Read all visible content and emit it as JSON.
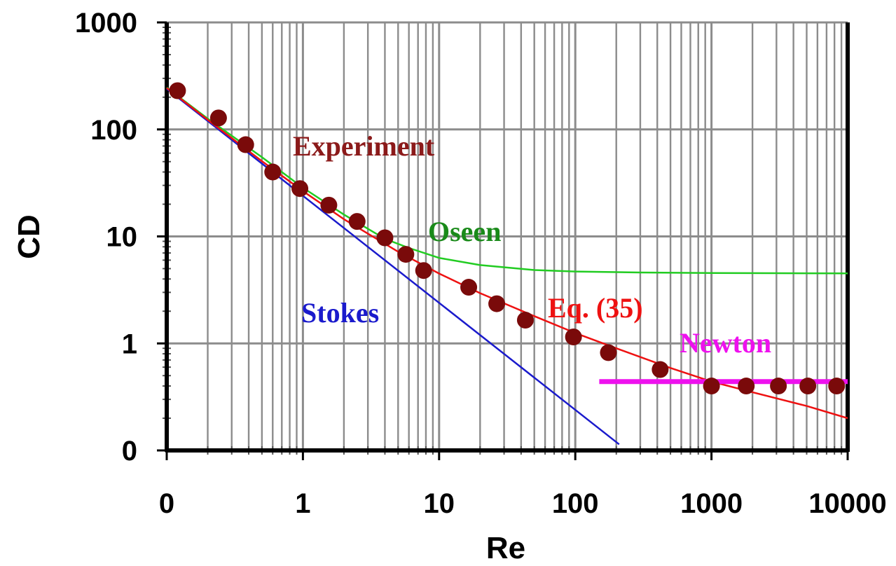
{
  "chart_data": {
    "type": "scatter",
    "title": "",
    "xlabel": "Re",
    "ylabel": "CD",
    "x_scale": "log",
    "y_scale": "log",
    "xlim": [
      0.1,
      10000
    ],
    "ylim": [
      0.1,
      1000
    ],
    "grid": true,
    "x_tick_labels": [
      "0",
      "1",
      "10",
      "100",
      "1000",
      "10000"
    ],
    "y_tick_labels": [
      "0",
      "1",
      "10",
      "100",
      "1000"
    ],
    "x_tick_values": [
      0.1,
      1,
      10,
      100,
      1000,
      10000
    ],
    "y_tick_values": [
      0.1,
      1,
      10,
      100,
      1000
    ],
    "series": [
      {
        "name": "Experiment",
        "kind": "markers",
        "color": "#7a0a0a",
        "label_color": "#8b1a1a",
        "x": [
          0.12,
          0.24,
          0.38,
          0.6,
          0.95,
          1.55,
          2.5,
          4.0,
          5.7,
          7.7,
          16.5,
          26.5,
          43,
          97,
          175,
          420,
          1000,
          1800,
          3100,
          5100,
          8300
        ],
        "y": [
          230,
          128,
          72,
          40,
          28,
          19.6,
          13.8,
          9.7,
          6.8,
          4.8,
          3.35,
          2.35,
          1.65,
          1.15,
          0.82,
          0.57,
          0.4,
          0.4,
          0.4,
          0.4,
          0.4
        ]
      },
      {
        "name": "Oseen",
        "kind": "line",
        "color": "#22cc22",
        "label_color": "#1a8a1a",
        "x": [
          0.1,
          0.2,
          0.5,
          1,
          2,
          4,
          6,
          10,
          20,
          50,
          100,
          300,
          1000,
          3000,
          10000
        ],
        "y": [
          246,
          126,
          55,
          28.5,
          16,
          9.5,
          7.8,
          6.3,
          5.4,
          4.85,
          4.7,
          4.6,
          4.55,
          4.53,
          4.52
        ]
      },
      {
        "name": "Stokes",
        "kind": "line",
        "color": "#1a1acc",
        "label_color": "#1a1acc",
        "x": [
          0.1,
          210
        ],
        "y": [
          240,
          0.114
        ]
      },
      {
        "name": "Eq. (35)",
        "kind": "line",
        "color": "#ee1111",
        "label_color": "#ee1111",
        "x": [
          0.1,
          0.2,
          0.5,
          1,
          2,
          3,
          5,
          10,
          20,
          50,
          100,
          200,
          500,
          1000,
          2000,
          5000,
          10000
        ],
        "y": [
          244,
          123,
          50.5,
          26.5,
          14.5,
          10.6,
          7.2,
          4.5,
          2.95,
          1.8,
          1.25,
          0.9,
          0.59,
          0.44,
          0.35,
          0.26,
          0.2
        ]
      },
      {
        "name": "Newton",
        "kind": "line",
        "color": "#ee11ee",
        "label_color": "#ee11ee",
        "x": [
          150,
          10000
        ],
        "y": [
          0.44,
          0.44
        ]
      }
    ]
  }
}
